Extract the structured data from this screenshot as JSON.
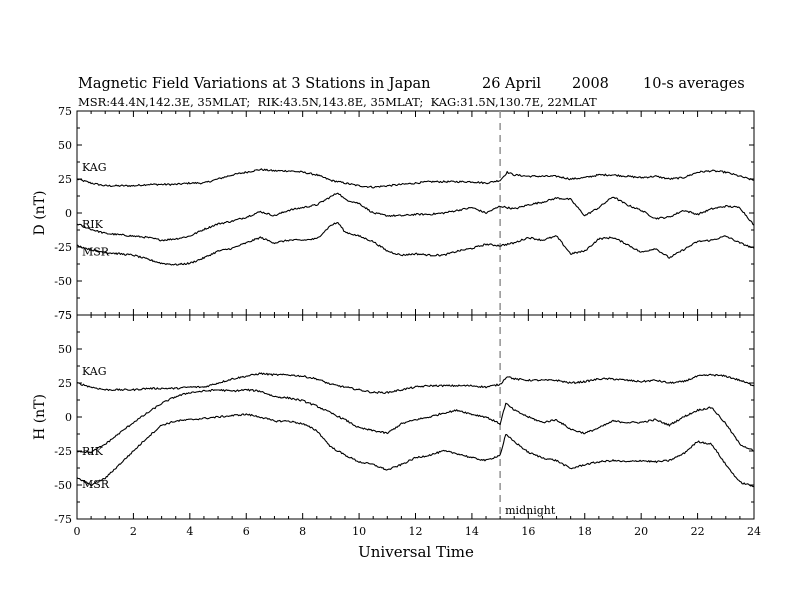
{
  "header": {
    "title": "Magnetic Field Variations at 3 Stations in Japan",
    "date": "26 April",
    "year": "2008",
    "averaging": "10-s averages",
    "stations_line": "MSR:44.4N,142.3E, 35MLAT;  RIK:43.5N,143.8E, 35MLAT;  KAG:31.5N,130.7E, 22MLAT"
  },
  "colors": {
    "trace": "#000000",
    "midnight_line": "#999999"
  },
  "chart_data": [
    {
      "type": "line",
      "panel": "D",
      "ylabel": "D (nT)",
      "ylim": [
        -75,
        75
      ],
      "yticks": [
        "75",
        "50",
        "25",
        "0",
        "-25",
        "-50",
        "-75"
      ],
      "xlim": [
        0,
        24
      ],
      "grid": false,
      "midnight_ut": 15,
      "series": [
        {
          "name": "KAG",
          "x": [
            0,
            0.5,
            1,
            1.5,
            2,
            2.5,
            3,
            3.5,
            4,
            4.5,
            5,
            5.5,
            6,
            6.5,
            7,
            7.5,
            8,
            8.5,
            9,
            9.5,
            10,
            10.5,
            11,
            11.5,
            12,
            12.5,
            13,
            13.5,
            14,
            14.5,
            15,
            15.25,
            15.5,
            16,
            16.5,
            17,
            17.5,
            18,
            18.5,
            19,
            19.5,
            20,
            20.5,
            21,
            21.5,
            22,
            22.5,
            23,
            23.5,
            24
          ],
          "y": [
            25,
            22,
            20,
            20,
            20,
            21,
            21,
            21,
            22,
            22,
            25,
            28,
            30,
            32,
            31,
            31,
            30,
            28,
            24,
            22,
            20,
            19,
            20,
            21,
            22,
            23,
            23,
            23,
            23,
            22,
            24,
            30,
            28,
            27,
            27,
            27,
            25,
            26,
            28,
            28,
            27,
            26,
            27,
            25,
            26,
            30,
            31,
            30,
            27,
            24
          ]
        },
        {
          "name": "RIK",
          "x": [
            0,
            0.5,
            1,
            1.5,
            2,
            2.5,
            3,
            3.5,
            4,
            4.5,
            5,
            5.5,
            6,
            6.5,
            7,
            7.5,
            8,
            8.5,
            9,
            9.25,
            9.5,
            10,
            10.5,
            11,
            11.5,
            12,
            12.5,
            13,
            13.5,
            14,
            14.5,
            15,
            15.5,
            16,
            16.5,
            17,
            17.5,
            18,
            18.5,
            19,
            19.5,
            20,
            20.5,
            21,
            21.5,
            22,
            22.5,
            23,
            23.5,
            24
          ],
          "y": [
            -8,
            -12,
            -15,
            -16,
            -17,
            -18,
            -20,
            -19,
            -17,
            -12,
            -8,
            -6,
            -3,
            1,
            -2,
            2,
            4,
            6,
            12,
            15,
            10,
            7,
            0,
            -2,
            -2,
            -1,
            -1,
            0,
            2,
            4,
            0,
            5,
            3,
            6,
            8,
            11,
            10,
            -2,
            4,
            12,
            6,
            2,
            -4,
            -3,
            2,
            -1,
            3,
            5,
            4,
            -9
          ]
        },
        {
          "name": "MSR",
          "x": [
            0,
            0.5,
            1,
            1.5,
            2,
            2.5,
            3,
            3.5,
            4,
            4.5,
            5,
            5.5,
            6,
            6.5,
            7,
            7.5,
            8,
            8.5,
            9,
            9.25,
            9.5,
            10,
            10.5,
            11,
            11.5,
            12,
            12.5,
            13,
            13.5,
            14,
            14.5,
            15,
            15.5,
            16,
            16.5,
            17,
            17.5,
            18,
            18.5,
            19,
            19.5,
            20,
            20.5,
            21,
            21.5,
            22,
            22.5,
            23,
            23.5,
            24
          ],
          "y": [
            -24,
            -27,
            -29,
            -30,
            -31,
            -34,
            -37,
            -38,
            -37,
            -33,
            -28,
            -26,
            -22,
            -18,
            -22,
            -20,
            -20,
            -19,
            -9,
            -7,
            -14,
            -17,
            -21,
            -28,
            -31,
            -30,
            -31,
            -31,
            -28,
            -26,
            -23,
            -24,
            -22,
            -18,
            -20,
            -17,
            -30,
            -28,
            -19,
            -18,
            -23,
            -29,
            -26,
            -33,
            -27,
            -21,
            -20,
            -17,
            -22,
            -26
          ]
        }
      ]
    },
    {
      "type": "line",
      "panel": "H",
      "ylabel": "H (nT)",
      "ylim": [
        -75,
        75
      ],
      "yticks": [
        "75",
        "50",
        "25",
        "0",
        "-25",
        "-50",
        "-75"
      ],
      "xlim": [
        0,
        24
      ],
      "xticks": [
        "0",
        "2",
        "4",
        "6",
        "8",
        "10",
        "12",
        "14",
        "16",
        "18",
        "20",
        "22",
        "24"
      ],
      "xlabel": "Universal Time",
      "grid": false,
      "midnight_ut": 15,
      "annotation": "midnight",
      "series": [
        {
          "name": "KAG",
          "x": [
            0,
            0.5,
            1,
            1.5,
            2,
            2.5,
            3,
            3.5,
            4,
            4.5,
            5,
            5.5,
            6,
            6.5,
            7,
            7.5,
            8,
            8.5,
            9,
            9.5,
            10,
            10.5,
            11,
            11.5,
            12,
            12.5,
            13,
            13.5,
            14,
            14.5,
            15,
            15.25,
            15.5,
            16,
            16.5,
            17,
            17.5,
            18,
            18.5,
            19,
            19.5,
            20,
            20.5,
            21,
            21.5,
            22,
            22.5,
            23,
            23.5,
            24
          ],
          "y": [
            25,
            22,
            20,
            20,
            20,
            21,
            21,
            21,
            22,
            22,
            25,
            28,
            30,
            32,
            31,
            31,
            30,
            28,
            24,
            22,
            20,
            18,
            18,
            20,
            22,
            23,
            23,
            23,
            23,
            22,
            24,
            30,
            28,
            27,
            27,
            27,
            25,
            26,
            28,
            28,
            27,
            26,
            27,
            25,
            26,
            30,
            31,
            30,
            27,
            23
          ]
        },
        {
          "name": "RIK",
          "x": [
            0,
            0.5,
            1,
            1.5,
            2,
            2.5,
            3,
            3.5,
            4,
            4.5,
            5,
            5.5,
            6,
            6.5,
            7,
            7.5,
            8,
            8.5,
            9,
            9.5,
            10,
            10.5,
            11,
            11.5,
            12,
            12.5,
            13,
            13.5,
            14,
            14.5,
            15,
            15.2,
            15.5,
            16,
            16.5,
            17,
            17.5,
            18,
            18.5,
            19,
            19.5,
            20,
            20.5,
            21,
            21.5,
            22,
            22.5,
            23,
            23.5,
            24
          ],
          "y": [
            -25,
            -26,
            -20,
            -12,
            -4,
            3,
            10,
            15,
            18,
            19,
            20,
            19,
            20,
            19,
            15,
            14,
            12,
            8,
            3,
            -2,
            -8,
            -10,
            -12,
            -5,
            -2,
            0,
            3,
            5,
            2,
            0,
            -5,
            10,
            5,
            0,
            -4,
            -2,
            -9,
            -12,
            -8,
            -3,
            -4,
            -4,
            -2,
            -6,
            0,
            5,
            7,
            -5,
            -20,
            -25
          ]
        },
        {
          "name": "MSR",
          "x": [
            0,
            0.5,
            1,
            1.5,
            2,
            2.5,
            3,
            3.5,
            4,
            4.5,
            5,
            5.5,
            6,
            6.5,
            7,
            7.5,
            8,
            8.5,
            9,
            9.5,
            10,
            10.5,
            11,
            11.5,
            12,
            12.5,
            13,
            13.5,
            14,
            14.5,
            15,
            15.2,
            15.5,
            16,
            16.5,
            17,
            17.5,
            18,
            18.5,
            19,
            19.5,
            20,
            20.5,
            21,
            21.5,
            22,
            22.5,
            23,
            23.5,
            24
          ],
          "y": [
            -45,
            -50,
            -45,
            -35,
            -25,
            -15,
            -6,
            -3,
            -2,
            -1,
            0,
            1,
            2,
            0,
            -3,
            -3,
            -5,
            -10,
            -22,
            -28,
            -33,
            -35,
            -39,
            -35,
            -30,
            -28,
            -25,
            -27,
            -30,
            -32,
            -28,
            -13,
            -18,
            -26,
            -30,
            -32,
            -38,
            -35,
            -33,
            -32,
            -33,
            -32,
            -33,
            -32,
            -27,
            -18,
            -20,
            -35,
            -48,
            -51
          ]
        }
      ]
    }
  ]
}
